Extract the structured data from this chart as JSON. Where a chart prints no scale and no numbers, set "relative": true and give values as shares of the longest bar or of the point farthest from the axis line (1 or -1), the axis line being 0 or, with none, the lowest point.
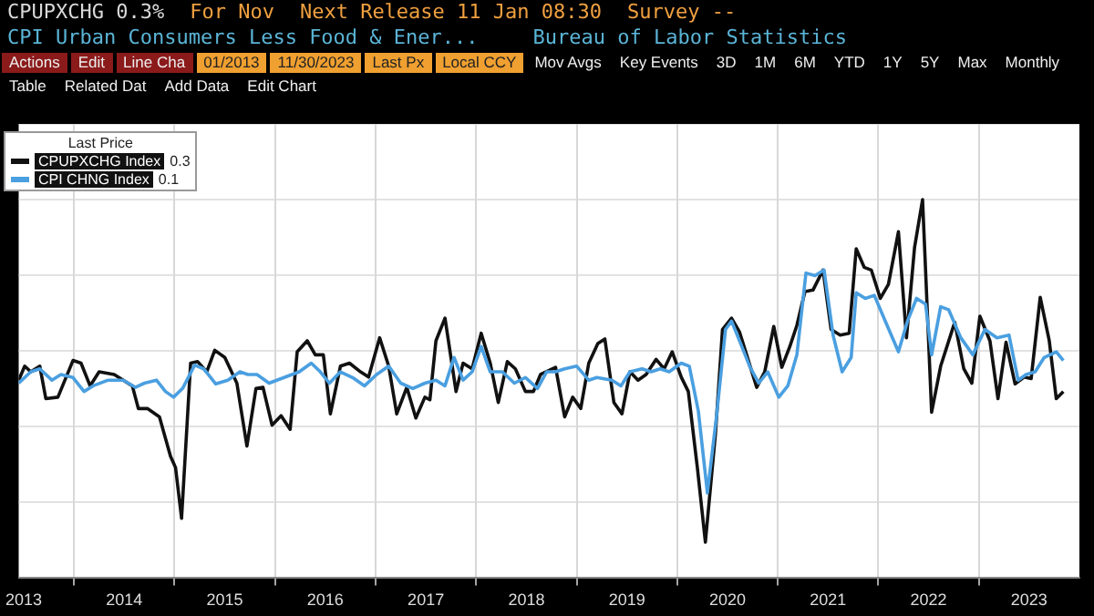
{
  "chart_data": {
    "type": "line",
    "title": "CPI Urban Consumers Less Food & Ener...",
    "subtitle": "Bureau of Labor Statistics",
    "legend_title": "Last Price",
    "legend": "top left",
    "relative": true,
    "grid": true,
    "marker": "none",
    "line_style": "solid",
    "annotations": [
      "CPUPXCHG 0.3%",
      "For Nov",
      "Next Release 11 Jan 08:30",
      "Survey --",
      "Actions",
      "Edit",
      "Line Cha",
      "01/2013",
      "11/30/2023",
      "Last Px",
      "Local CCY",
      "Mov Avgs",
      "Key Events",
      "3D",
      "1M",
      "6M",
      "YTD",
      "1Y",
      "5Y",
      "Max",
      "Monthly",
      "Table",
      "Related Dat",
      "Add Data",
      "Edit Chart",
      "0.3",
      "0.1"
    ],
    "xlim": [
      2013.45,
      2024.0
    ],
    "xticks": [
      {
        "value": 2013.5,
        "label": "2013"
      },
      {
        "value": 2014,
        "label": null
      },
      {
        "value": 2014.5,
        "label": "2014"
      },
      {
        "value": 2015,
        "label": null
      },
      {
        "value": 2015.5,
        "label": "2015"
      },
      {
        "value": 2016,
        "label": null
      },
      {
        "value": 2016.5,
        "label": "2016"
      },
      {
        "value": 2017,
        "label": null
      },
      {
        "value": 2017.5,
        "label": "2017"
      },
      {
        "value": 2018,
        "label": null
      },
      {
        "value": 2018.5,
        "label": "2018"
      },
      {
        "value": 2019,
        "label": null
      },
      {
        "value": 2019.5,
        "label": "2019"
      },
      {
        "value": 2020,
        "label": null
      },
      {
        "value": 2020.5,
        "label": "2020"
      },
      {
        "value": 2021,
        "label": null
      },
      {
        "value": 2021.5,
        "label": "2021"
      },
      {
        "value": 2022,
        "label": null
      },
      {
        "value": 2022.5,
        "label": "2022"
      },
      {
        "value": 2023,
        "label": null
      },
      {
        "value": 2023.5,
        "label": "2023"
      }
    ],
    "series": [
      {
        "name": "CPUPXCHG Index",
        "color": "#111111",
        "x": [
          2013.45,
          2013.51,
          2013.57,
          2013.66,
          2013.72,
          2013.84,
          2013.99,
          2014.07,
          2014.16,
          2014.25,
          2014.4,
          2014.49,
          2014.58,
          2014.64,
          2014.73,
          2014.85,
          2014.96,
          2015.01,
          2015.07,
          2015.16,
          2015.23,
          2015.32,
          2015.4,
          2015.5,
          2015.62,
          2015.72,
          2015.81,
          2015.88,
          2015.97,
          2016.06,
          2016.15,
          2016.22,
          2016.32,
          2016.4,
          2016.48,
          2016.55,
          2016.65,
          2016.74,
          2016.85,
          2016.93,
          2017.04,
          2017.13,
          2017.21,
          2017.31,
          2017.4,
          2017.49,
          2017.54,
          2017.6,
          2017.69,
          2017.8,
          2017.87,
          2017.96,
          2018.05,
          2018.14,
          2018.22,
          2018.31,
          2018.39,
          2018.49,
          2018.57,
          2018.64,
          2018.79,
          2018.88,
          2018.96,
          2019.04,
          2019.12,
          2019.21,
          2019.28,
          2019.37,
          2019.45,
          2019.53,
          2019.61,
          2019.69,
          2019.79,
          2019.87,
          2019.95,
          2020.04,
          2020.11,
          2020.2,
          2020.28,
          2020.38,
          2020.45,
          2020.54,
          2020.62,
          2020.69,
          2020.79,
          2020.87,
          2020.96,
          2021.04,
          2021.12,
          2021.19,
          2021.27,
          2021.35,
          2021.45,
          2021.53,
          2021.62,
          2021.71,
          2021.78,
          2021.86,
          2021.93,
          2022.02,
          2022.1,
          2022.2,
          2022.28,
          2022.36,
          2022.44,
          2022.53,
          2022.62,
          2022.76,
          2022.85,
          2022.93,
          2023.01,
          2023.11,
          2023.19,
          2023.27,
          2023.36,
          2023.45,
          2023.52,
          2023.61,
          2023.7,
          2023.77,
          2023.84
        ],
        "values": [
          0.523,
          0.56,
          0.545,
          0.56,
          0.474,
          0.478,
          0.575,
          0.568,
          0.508,
          0.545,
          0.538,
          0.523,
          0.508,
          0.448,
          0.448,
          0.426,
          0.322,
          0.292,
          0.158,
          0.568,
          0.572,
          0.545,
          0.602,
          0.583,
          0.515,
          0.349,
          0.501,
          0.504,
          0.404,
          0.429,
          0.393,
          0.598,
          0.627,
          0.59,
          0.59,
          0.434,
          0.56,
          0.568,
          0.545,
          0.531,
          0.635,
          0.56,
          0.434,
          0.504,
          0.423,
          0.478,
          0.471,
          0.627,
          0.687,
          0.493,
          0.568,
          0.553,
          0.647,
          0.568,
          0.464,
          0.572,
          0.553,
          0.493,
          0.493,
          0.538,
          0.557,
          0.426,
          0.478,
          0.448,
          0.568,
          0.62,
          0.632,
          0.464,
          0.434,
          0.545,
          0.523,
          0.538,
          0.578,
          0.553,
          0.598,
          0.531,
          0.493,
          0.292,
          0.095,
          0.381,
          0.657,
          0.687,
          0.65,
          0.59,
          0.504,
          0.545,
          0.665,
          0.557,
          0.612,
          0.668,
          0.757,
          0.761,
          0.814,
          0.657,
          0.642,
          0.647,
          0.87,
          0.821,
          0.814,
          0.739,
          0.776,
          0.915,
          0.635,
          0.873,
          1,
          0.438,
          0.56,
          0.676,
          0.553,
          0.515,
          0.692,
          0.627,
          0.474,
          0.623,
          0.513,
          0.531,
          0.527,
          0.742,
          0.627,
          0.474,
          0.493
        ]
      },
      {
        "name": "CPI CHNG Index",
        "color": "#4a9fe0",
        "x": [
          2013.45,
          2013.57,
          2013.66,
          2013.78,
          2013.87,
          2013.99,
          2014.1,
          2014.19,
          2014.34,
          2014.49,
          2014.61,
          2014.7,
          2014.82,
          2014.91,
          2014.99,
          2015.08,
          2015.2,
          2015.29,
          2015.41,
          2015.53,
          2015.65,
          2015.73,
          2015.82,
          2015.94,
          2016.09,
          2016.24,
          2016.36,
          2016.45,
          2016.54,
          2016.65,
          2016.77,
          2016.89,
          2017.01,
          2017.13,
          2017.25,
          2017.37,
          2017.49,
          2017.6,
          2017.69,
          2017.78,
          2017.87,
          2017.96,
          2018.05,
          2018.14,
          2018.26,
          2018.38,
          2018.49,
          2018.61,
          2018.7,
          2018.79,
          2018.88,
          2019.0,
          2019.12,
          2019.2,
          2019.35,
          2019.44,
          2019.53,
          2019.65,
          2019.74,
          2019.83,
          2019.92,
          2020.04,
          2020.12,
          2020.21,
          2020.3,
          2020.39,
          2020.48,
          2020.54,
          2020.63,
          2020.72,
          2020.81,
          2020.9,
          2021.01,
          2021.1,
          2021.19,
          2021.28,
          2021.37,
          2021.46,
          2021.55,
          2021.64,
          2021.73,
          2021.78,
          2021.87,
          2021.96,
          2022.08,
          2022.2,
          2022.29,
          2022.38,
          2022.47,
          2022.53,
          2022.62,
          2022.7,
          2022.82,
          2022.94,
          2023.06,
          2023.18,
          2023.3,
          2023.39,
          2023.47,
          2023.56,
          2023.65,
          2023.77,
          2023.84
        ],
        "values": [
          0.515,
          0.545,
          0.553,
          0.523,
          0.538,
          0.53,
          0.493,
          0.508,
          0.523,
          0.523,
          0.504,
          0.515,
          0.523,
          0.493,
          0.478,
          0.501,
          0.563,
          0.553,
          0.513,
          0.523,
          0.545,
          0.538,
          0.538,
          0.515,
          0.53,
          0.545,
          0.568,
          0.545,
          0.515,
          0.545,
          0.53,
          0.508,
          0.538,
          0.56,
          0.515,
          0.501,
          0.515,
          0.523,
          0.508,
          0.583,
          0.523,
          0.545,
          0.612,
          0.545,
          0.545,
          0.515,
          0.53,
          0.501,
          0.545,
          0.545,
          0.553,
          0.56,
          0.523,
          0.53,
          0.523,
          0.508,
          0.545,
          0.553,
          0.545,
          0.553,
          0.545,
          0.568,
          0.56,
          0.441,
          0.225,
          0.426,
          0.657,
          0.679,
          0.62,
          0.56,
          0.515,
          0.545,
          0.478,
          0.508,
          0.59,
          0.806,
          0.799,
          0.814,
          0.642,
          0.545,
          0.583,
          0.754,
          0.739,
          0.747,
          0.672,
          0.598,
          0.679,
          0.739,
          0.724,
          0.59,
          0.717,
          0.709,
          0.635,
          0.59,
          0.657,
          0.635,
          0.642,
          0.523,
          0.538,
          0.545,
          0.583,
          0.598,
          0.575
        ]
      }
    ]
  }
}
